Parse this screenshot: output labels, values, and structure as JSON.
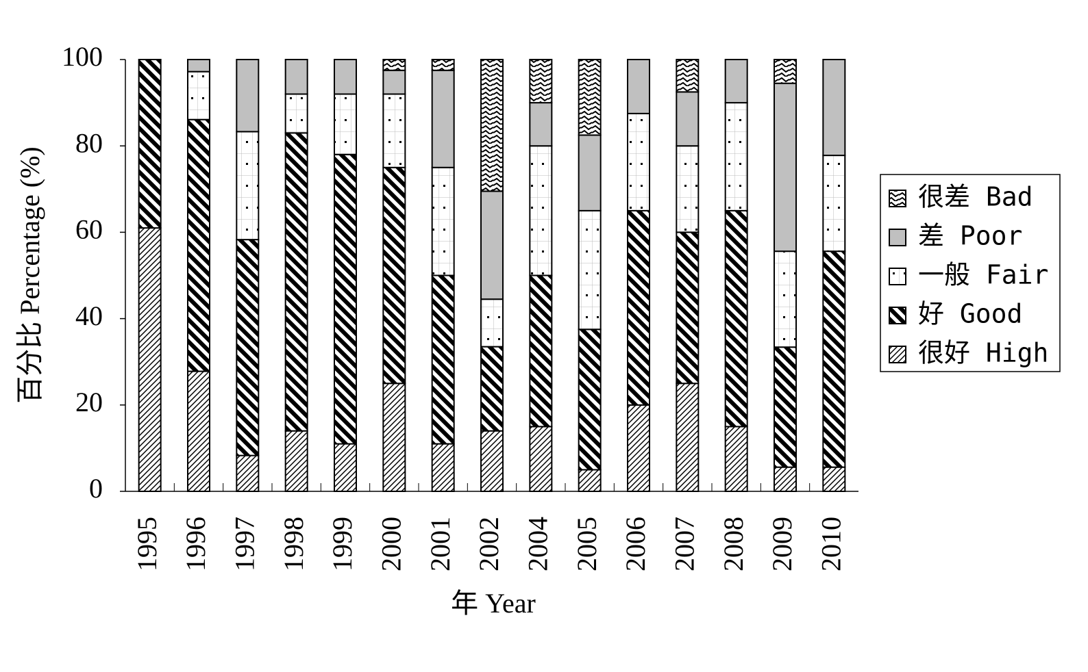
{
  "chart_data": {
    "type": "stacked_bar",
    "xlabel": "年 Year",
    "ylabel": "百分比 Percentage (%)",
    "categories": [
      "1995",
      "1996",
      "1997",
      "1998",
      "1999",
      "2000",
      "2001",
      "2002",
      "2004",
      "2005",
      "2006",
      "2007",
      "2008",
      "2009",
      "2010"
    ],
    "series": [
      {
        "name": "很好 High",
        "color": "#ffffff",
        "pattern": "thin-hatch",
        "values": [
          61,
          27.8,
          8.3,
          14,
          11,
          25,
          11,
          14,
          15,
          5,
          20,
          25,
          15,
          5.6,
          5.6
        ]
      },
      {
        "name": "好 Good",
        "color": "#ffffff",
        "pattern": "thick-hatch",
        "values": [
          39,
          58.3,
          50,
          69,
          67,
          50,
          39,
          19.5,
          35,
          32.5,
          45,
          35,
          50,
          27.8,
          50
        ]
      },
      {
        "name": "一般 Fair",
        "color": "#ffffff",
        "pattern": "dots",
        "values": [
          0,
          11.1,
          25,
          9,
          14,
          17,
          25,
          11,
          30,
          27.5,
          22.5,
          20,
          25,
          22.2,
          22.2
        ]
      },
      {
        "name": "差 Poor",
        "color": "#c0c0c0",
        "pattern": "solid",
        "values": [
          0,
          2.8,
          16.7,
          8,
          8,
          5.5,
          22.5,
          25,
          10,
          17.5,
          12.5,
          12.5,
          10,
          38.9,
          22.2
        ]
      },
      {
        "name": "很差 Bad",
        "color": "#ffffff",
        "pattern": "zigzag",
        "values": [
          0,
          0,
          0,
          0,
          0,
          2.5,
          2.5,
          30.5,
          10,
          17.5,
          0,
          7.5,
          0,
          5.5,
          0
        ]
      }
    ],
    "ylim": [
      0,
      100
    ],
    "yticks": [
      0,
      20,
      40,
      60,
      80,
      100
    ],
    "grid": false,
    "legend": "right"
  }
}
